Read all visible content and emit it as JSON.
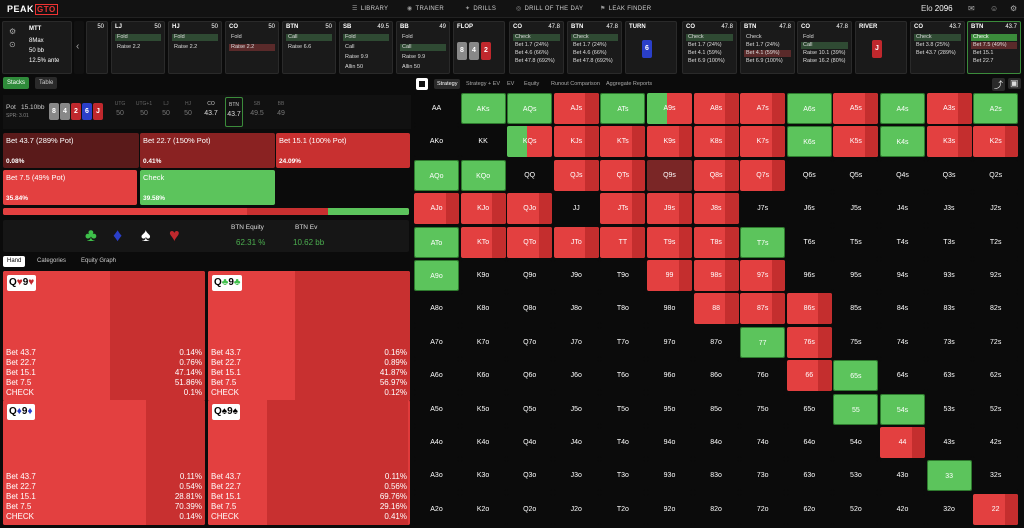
{
  "app": {
    "logo_a": "PEAK",
    "logo_b": "GTO",
    "nav": [
      {
        "icon": "☰",
        "label": "LIBRARY"
      },
      {
        "icon": "◉",
        "label": "TRAINER"
      },
      {
        "icon": "✦",
        "label": "DRILLS"
      },
      {
        "icon": "◎",
        "label": "DRILL OF THE DAY"
      },
      {
        "icon": "⚑",
        "label": "LEAK FINDER"
      }
    ],
    "elo_label": "Elo",
    "elo_value": "2096"
  },
  "game": {
    "title": "MTT",
    "lines": [
      "8Max",
      "50 bb",
      "12.5% ante"
    ]
  },
  "positions": [
    {
      "name": "",
      "stack": "50",
      "opts": []
    },
    {
      "name": "LJ",
      "stack": "50",
      "opts": [
        {
          "t": "Fold",
          "s": "sel"
        },
        {
          "t": "Raise 2.2",
          "s": ""
        }
      ]
    },
    {
      "name": "HJ",
      "stack": "50",
      "opts": [
        {
          "t": "Fold",
          "s": "sel"
        },
        {
          "t": "Raise 2.2",
          "s": ""
        }
      ]
    },
    {
      "name": "CO",
      "stack": "50",
      "opts": [
        {
          "t": "Fold",
          "s": ""
        },
        {
          "t": "Raise 2.2",
          "s": "selr"
        }
      ]
    },
    {
      "name": "BTN",
      "stack": "50",
      "opts": [
        {
          "t": "Call",
          "s": "sel"
        },
        {
          "t": "Raise 6.6",
          "s": ""
        }
      ]
    },
    {
      "name": "SB",
      "stack": "49.5",
      "opts": [
        {
          "t": "Fold",
          "s": "sel"
        },
        {
          "t": "Call",
          "s": ""
        },
        {
          "t": "Raise 9.9",
          "s": ""
        },
        {
          "t": "Allin 50",
          "s": ""
        }
      ]
    },
    {
      "name": "BB",
      "stack": "49",
      "opts": [
        {
          "t": "Fold",
          "s": ""
        },
        {
          "t": "Call",
          "s": "sel"
        },
        {
          "t": "Raise 9.9",
          "s": ""
        },
        {
          "t": "Allin 50",
          "s": ""
        }
      ]
    }
  ],
  "flop": {
    "label": "FLOP",
    "cards": [
      {
        "r": "8",
        "c": "#888"
      },
      {
        "r": "4",
        "c": "#888"
      },
      {
        "r": "2",
        "c": "#c0282d"
      }
    ]
  },
  "streets": [
    {
      "name": "CO",
      "stack": "47.8",
      "opts": [
        {
          "t": "Check",
          "s": "sel"
        },
        {
          "t": "Bet 1.7 (24%)",
          "s": ""
        },
        {
          "t": "Bet 4.6 (66%)",
          "s": ""
        },
        {
          "t": "Bet 47.8 (692%)",
          "s": ""
        }
      ]
    },
    {
      "name": "BTN",
      "stack": "47.8",
      "opts": [
        {
          "t": "Check",
          "s": "sel"
        },
        {
          "t": "Bet 1.7 (24%)",
          "s": ""
        },
        {
          "t": "Bet 4.6 (66%)",
          "s": ""
        },
        {
          "t": "Bet 47.8 (692%)",
          "s": ""
        }
      ]
    },
    {
      "name": "TURN",
      "stack": "",
      "opts": []
    },
    {
      "name": "CO",
      "stack": "47.8",
      "opts": [
        {
          "t": "Check",
          "s": "sel"
        },
        {
          "t": "Bet 1.7 (24%)",
          "s": ""
        },
        {
          "t": "Bet 4.1 (59%)",
          "s": ""
        },
        {
          "t": "Bet 6.9 (100%)",
          "s": ""
        }
      ]
    },
    {
      "name": "BTN",
      "stack": "47.8",
      "opts": [
        {
          "t": "Check",
          "s": ""
        },
        {
          "t": "Bet 1.7 (24%)",
          "s": ""
        },
        {
          "t": "Bet 4.1 (59%)",
          "s": "selr"
        },
        {
          "t": "Bet 6.9 (100%)",
          "s": ""
        }
      ]
    },
    {
      "name": "CO",
      "stack": "47.8",
      "opts": [
        {
          "t": "Fold",
          "s": ""
        },
        {
          "t": "Call",
          "s": "sel"
        },
        {
          "t": "Raise 10.1 (39%)",
          "s": ""
        },
        {
          "t": "Raise 16.2 (80%)",
          "s": ""
        }
      ]
    },
    {
      "name": "RIVER",
      "stack": "",
      "opts": []
    },
    {
      "name": "CO",
      "stack": "43.7",
      "opts": [
        {
          "t": "Check",
          "s": "sel"
        },
        {
          "t": "Bet 3.8 (25%)",
          "s": ""
        },
        {
          "t": "Bet 43.7 (289%)",
          "s": ""
        }
      ]
    },
    {
      "name": "BTN",
      "stack": "43.7",
      "opts": [
        {
          "t": "Check",
          "s": "selg"
        },
        {
          "t": "Bet 7.5 (49%)",
          "s": "selr"
        },
        {
          "t": "Bet 15.1",
          "s": ""
        },
        {
          "t": "Bet 22.7",
          "s": ""
        }
      ]
    }
  ],
  "turn_card": {
    "r": "6",
    "c": "#2a3fc9"
  },
  "river_card": {
    "r": "J",
    "c": "#c0282d"
  },
  "left_tabs": {
    "stacks": "Stacks",
    "table": "Table"
  },
  "pot": {
    "label": "Pot",
    "value": "15.10bb",
    "spr": "SPR: 3.01"
  },
  "board": [
    {
      "r": "8",
      "c": "#888"
    },
    {
      "r": "4",
      "c": "#888"
    },
    {
      "r": "2",
      "c": "#c0282d"
    },
    {
      "r": "6",
      "c": "#2a3fc9"
    },
    {
      "r": "J",
      "c": "#c0282d"
    }
  ],
  "seats": [
    {
      "n": "UTG",
      "v": "50"
    },
    {
      "n": "UTG+1",
      "v": "50"
    },
    {
      "n": "LJ",
      "v": "50"
    },
    {
      "n": "HJ",
      "v": "50"
    },
    {
      "n": "CO",
      "v": "43.7"
    },
    {
      "n": "BTN",
      "v": "43.7"
    },
    {
      "n": "SB",
      "v": "49.5"
    },
    {
      "n": "BB",
      "v": "49"
    }
  ],
  "actions": [
    {
      "label": "Bet 43.7 (289% Pot)",
      "pct": "0.08%",
      "color": "#5a1a1a"
    },
    {
      "label": "Bet 22.7 (150% Pot)",
      "pct": "0.41%",
      "color": "#8a2222"
    },
    {
      "label": "Bet 15.1 (100% Pot)",
      "pct": "24.09%",
      "color": "#c83030"
    },
    {
      "label": "Bet 7.5 (49% Pot)",
      "pct": "35.84%",
      "color": "#e34040"
    },
    {
      "label": "Check",
      "pct": "39.58%",
      "color": "#5cc45c"
    }
  ],
  "stack_fractions": [
    0.6,
    0.2,
    0.2
  ],
  "suits": [
    {
      "g": "♣",
      "c": "#3ec04a"
    },
    {
      "g": "♦",
      "c": "#2a3fc9"
    },
    {
      "g": "♠",
      "c": "#ffffff"
    },
    {
      "g": "♥",
      "c": "#c0282d"
    }
  ],
  "equity": {
    "label": "BTN Equity",
    "value": "62.31 %"
  },
  "ev": {
    "label": "BTN Ev",
    "value": "10.62 bb"
  },
  "subtabs": {
    "hand": "Hand",
    "categories": "Categories",
    "equity_graph": "Equity Graph"
  },
  "hands": [
    {
      "cards": [
        {
          "r": "Q",
          "g": "♥",
          "c": "#c0282d"
        },
        {
          "r": "9",
          "g": "♥",
          "c": "#c0282d"
        }
      ],
      "rows": [
        [
          "Bet 43.7",
          "0.14%"
        ],
        [
          "Bet 22.7",
          "0.76%"
        ],
        [
          "Bet 15.1",
          "47.14%"
        ],
        [
          "Bet 7.5",
          "51.86%"
        ],
        [
          "CHECK",
          "0.1%"
        ]
      ],
      "split": [
        0,
        0.53,
        0.52
      ]
    },
    {
      "cards": [
        {
          "r": "Q",
          "g": "♣",
          "c": "#3ec04a"
        },
        {
          "r": "9",
          "g": "♣",
          "c": "#3ec04a"
        }
      ],
      "rows": [
        [
          "Bet 43.7",
          "0.16%"
        ],
        [
          "Bet 22.7",
          "0.89%"
        ],
        [
          "Bet 15.1",
          "41.87%"
        ],
        [
          "Bet 7.5",
          "56.97%"
        ],
        [
          "CHECK",
          "0.12%"
        ]
      ],
      "split": [
        0,
        0.43,
        0.57
      ]
    },
    {
      "cards": [
        {
          "r": "Q",
          "g": "♦",
          "c": "#2a3fc9"
        },
        {
          "r": "9",
          "g": "♦",
          "c": "#2a3fc9"
        }
      ],
      "rows": [
        [
          "Bet 43.7",
          "0.11%"
        ],
        [
          "Bet 22.7",
          "0.54%"
        ],
        [
          "Bet 15.1",
          "28.81%"
        ],
        [
          "Bet 7.5",
          "70.39%"
        ],
        [
          "CHECK",
          "0.14%"
        ]
      ],
      "split": [
        0,
        0.71,
        0.29
      ]
    },
    {
      "cards": [
        {
          "r": "Q",
          "g": "♠",
          "c": "#000000"
        },
        {
          "r": "9",
          "g": "♠",
          "c": "#000000"
        }
      ],
      "rows": [
        [
          "Bet 43.7",
          "0.11%"
        ],
        [
          "Bet 22.7",
          "0.56%"
        ],
        [
          "Bet 15.1",
          "69.76%"
        ],
        [
          "Bet 7.5",
          "29.16%"
        ],
        [
          "CHECK",
          "0.41%"
        ]
      ],
      "split": [
        0,
        0.29,
        0.7
      ]
    }
  ],
  "right_tabs": [
    "Strategy",
    "Strategy + EV",
    "EV",
    "Equity",
    "Runout Comparison",
    "Aggregate Reports"
  ],
  "ranks": [
    "A",
    "K",
    "Q",
    "J",
    "T",
    "9",
    "8",
    "7",
    "6",
    "5",
    "4",
    "3",
    "2"
  ],
  "cells": {
    "AKs": "g",
    "AQs": "g",
    "AJs": "r",
    "ATs": "g",
    "A9s": "gr",
    "A8s": "r",
    "A7s": "r",
    "A6s": "g",
    "A5s": "r",
    "A4s": "g",
    "A3s": "r",
    "A2s": "g",
    "KQs": "gr",
    "KJs": "r",
    "KTs": "r",
    "K9s": "r",
    "K8s": "r",
    "K7s": "r",
    "K6s": "g",
    "K5s": "r",
    "K4s": "g",
    "K3s": "r",
    "K2s": "r",
    "AQo": "g",
    "KQo": "g",
    "QJs": "r",
    "QTs": "r",
    "Q9s": "d",
    "Q8s": "r",
    "Q7s": "r",
    "AJo": "r",
    "KJo": "r",
    "QJo": "r",
    "JTs": "r",
    "J9s": "r",
    "J8s": "r",
    "ATo": "g",
    "KTo": "r",
    "QTo": "r",
    "JTo": "r",
    "TT": "r",
    "T9s": "r",
    "T8s": "r",
    "T7s": "g",
    "A9o": "g",
    "99": "r",
    "98s": "r",
    "97s": "r",
    "88": "r",
    "87s": "r",
    "86s": "r",
    "77": "g",
    "76s": "r",
    "66": "r",
    "65s": "g",
    "55": "g",
    "54s": "g",
    "44": "r",
    "33": "g",
    "22": "r"
  }
}
